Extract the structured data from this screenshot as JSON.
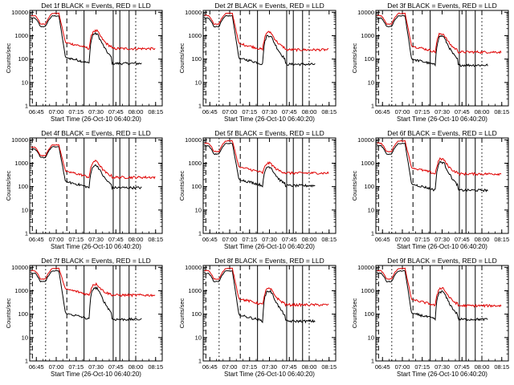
{
  "figure": {
    "xlabel": "Start Time (26-Oct-10 06:40:20)",
    "ylabel": "Counts/sec",
    "colors": {
      "events": "#000000",
      "lld": "#e00000",
      "markers": "#000000"
    },
    "tick_labels_x": [
      "06:45",
      "07:00",
      "07:15",
      "07:30",
      "07:45",
      "08:00",
      "08:15"
    ],
    "tick_labels_y": [
      "1",
      "10",
      "100",
      "1000",
      "10000"
    ]
  },
  "chart_data": [
    {
      "type": "line",
      "title": "Det 1f BLACK = Events, RED = LLD",
      "yscale": "log",
      "ylim": [
        1,
        12000
      ],
      "x_range": [
        "06:40",
        "08:20"
      ],
      "series": [
        {
          "name": "Events",
          "color": "#000000",
          "pre": 7000,
          "peak": 1200,
          "base": 65,
          "x": [
            "06:41",
            "06:47",
            "06:52",
            "07:01",
            "07:04",
            "07:26",
            "07:30",
            "07:33",
            "07:39",
            "07:46",
            "07:48",
            "07:50",
            "07:55",
            "08:01",
            "08:05"
          ]
        },
        {
          "name": "LLD",
          "color": "#e00000",
          "pre": 9000,
          "peak": 1600,
          "base": 280,
          "x": [
            "06:41",
            "06:47",
            "06:52",
            "07:01",
            "07:04",
            "07:26",
            "07:30",
            "07:33",
            "07:39",
            "07:46",
            "07:48",
            "07:50",
            "07:55",
            "08:01",
            "08:05",
            "08:15"
          ]
        }
      ],
      "markers": {
        "solid": [
          "07:21",
          "07:43",
          "07:48",
          "07:55"
        ],
        "dashed": [
          "06:42",
          "07:08"
        ],
        "dotted": [
          "06:52",
          "08:00"
        ]
      }
    },
    {
      "type": "line",
      "title": "Det 2f BLACK = Events, RED = LLD",
      "yscale": "log",
      "ylim": [
        1,
        12000
      ],
      "x_range": [
        "06:40",
        "08:20"
      ],
      "series": [
        {
          "name": "Events",
          "color": "#000000",
          "pre": 7000,
          "peak": 1000,
          "base": 60
        },
        {
          "name": "LLD",
          "color": "#e00000",
          "pre": 9000,
          "peak": 1400,
          "base": 250
        }
      ],
      "markers": {
        "solid": [
          "07:21",
          "07:43",
          "07:48",
          "07:55"
        ],
        "dashed": [
          "06:42",
          "07:08"
        ],
        "dotted": [
          "06:52",
          "08:00"
        ]
      }
    },
    {
      "type": "line",
      "title": "Det 3f BLACK = Events, RED = LLD",
      "yscale": "log",
      "ylim": [
        1,
        12000
      ],
      "x_range": [
        "06:40",
        "08:20"
      ],
      "series": [
        {
          "name": "Events",
          "color": "#000000",
          "pre": 7000,
          "peak": 950,
          "base": 55
        },
        {
          "name": "LLD",
          "color": "#e00000",
          "pre": 9000,
          "peak": 1200,
          "base": 200
        }
      ],
      "markers": {
        "solid": [
          "07:21",
          "07:43",
          "07:48",
          "07:55"
        ],
        "dashed": [
          "06:42",
          "07:08"
        ],
        "dotted": [
          "06:52",
          "08:00"
        ]
      }
    },
    {
      "type": "line",
      "title": "Det 4f BLACK = Events, RED = LLD",
      "yscale": "log",
      "ylim": [
        1,
        12000
      ],
      "x_range": [
        "06:40",
        "08:20"
      ],
      "series": [
        {
          "name": "Events",
          "color": "#000000",
          "pre": 5000,
          "peak": 800,
          "base": 90
        },
        {
          "name": "LLD",
          "color": "#e00000",
          "pre": 6000,
          "peak": 1200,
          "base": 250
        }
      ],
      "markers": {
        "solid": [
          "07:21",
          "07:43",
          "07:48",
          "07:55"
        ],
        "dashed": [
          "06:42",
          "07:08"
        ],
        "dotted": [
          "06:52",
          "08:00"
        ]
      }
    },
    {
      "type": "line",
      "title": "Det 5f BLACK = Events, RED = LLD",
      "yscale": "log",
      "ylim": [
        1,
        12000
      ],
      "x_range": [
        "06:40",
        "08:20"
      ],
      "series": [
        {
          "name": "Events",
          "color": "#000000",
          "pre": 7000,
          "peak": 700,
          "base": 110
        },
        {
          "name": "LLD",
          "color": "#e00000",
          "pre": 9000,
          "peak": 1000,
          "base": 380
        }
      ],
      "markers": {
        "solid": [
          "07:21",
          "07:43",
          "07:48",
          "07:55"
        ],
        "dashed": [
          "06:42",
          "07:08"
        ],
        "dotted": [
          "06:52",
          "08:00"
        ]
      }
    },
    {
      "type": "line",
      "title": "Det 6f BLACK = Events, RED = LLD",
      "yscale": "log",
      "ylim": [
        1,
        12000
      ],
      "x_range": [
        "06:40",
        "08:20"
      ],
      "series": [
        {
          "name": "Events",
          "color": "#000000",
          "pre": 7000,
          "peak": 1100,
          "base": 70
        },
        {
          "name": "LLD",
          "color": "#e00000",
          "pre": 9000,
          "peak": 1500,
          "base": 350
        }
      ],
      "markers": {
        "solid": [
          "07:21",
          "07:43",
          "07:48",
          "07:55"
        ],
        "dashed": [
          "06:42",
          "07:08"
        ],
        "dotted": [
          "06:52",
          "08:00"
        ]
      }
    },
    {
      "type": "line",
      "title": "Det 7f BLACK = Events, RED = LLD",
      "yscale": "log",
      "ylim": [
        1,
        12000
      ],
      "x_range": [
        "06:40",
        "08:20"
      ],
      "series": [
        {
          "name": "Events",
          "color": "#000000",
          "pre": 7000,
          "peak": 1300,
          "base": 60
        },
        {
          "name": "LLD",
          "color": "#e00000",
          "pre": 9000,
          "peak": 1900,
          "base": 650
        }
      ],
      "markers": {
        "solid": [
          "07:21",
          "07:43",
          "07:48",
          "07:55"
        ],
        "dashed": [
          "06:42",
          "07:08"
        ],
        "dotted": [
          "06:52",
          "08:00"
        ]
      }
    },
    {
      "type": "line",
      "title": "Det 8f BLACK = Events, RED = LLD",
      "yscale": "log",
      "ylim": [
        1,
        12000
      ],
      "x_range": [
        "06:40",
        "08:20"
      ],
      "series": [
        {
          "name": "Events",
          "color": "#000000",
          "pre": 7000,
          "peak": 950,
          "base": 50
        },
        {
          "name": "LLD",
          "color": "#e00000",
          "pre": 9000,
          "peak": 1200,
          "base": 250
        }
      ],
      "markers": {
        "solid": [
          "07:21",
          "07:43",
          "07:48",
          "07:55"
        ],
        "dashed": [
          "06:42",
          "07:08"
        ],
        "dotted": [
          "06:52",
          "08:00"
        ]
      }
    },
    {
      "type": "line",
      "title": "Det 9f BLACK = Events, RED = LLD",
      "yscale": "log",
      "ylim": [
        1,
        12000
      ],
      "x_range": [
        "06:40",
        "08:20"
      ],
      "series": [
        {
          "name": "Events",
          "color": "#000000",
          "pre": 7000,
          "peak": 900,
          "base": 60
        },
        {
          "name": "LLD",
          "color": "#e00000",
          "pre": 9000,
          "peak": 1300,
          "base": 230
        }
      ],
      "markers": {
        "solid": [
          "07:21",
          "07:43",
          "07:48",
          "07:55"
        ],
        "dashed": [
          "06:42",
          "07:08"
        ],
        "dotted": [
          "06:52",
          "08:00"
        ]
      }
    }
  ]
}
